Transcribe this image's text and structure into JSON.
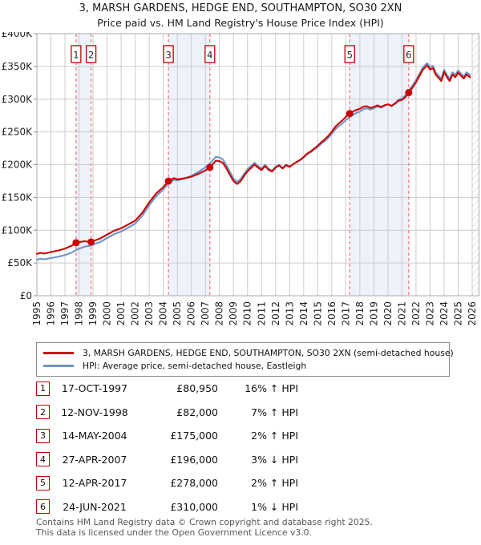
{
  "header": {
    "title_line1": "3, MARSH GARDENS, HEDGE END, SOUTHAMPTON, SO30 2XN",
    "title_line2": "Price paid vs. HM Land Registry's House Price Index (HPI)"
  },
  "colors": {
    "property": "#cc0000",
    "hpi": "#6d95c8",
    "marker_dashed": "#f08080",
    "band": "#edf2fb",
    "grid": "#cccccc",
    "plot_border": "#a8a8a8",
    "badge_border": "#c00000",
    "hatch": "#c4c4c4",
    "axis_text": "#222222"
  },
  "chart_data": {
    "type": "line",
    "title": "Price paid vs. HM Land Registry's House Price Index (HPI)",
    "values_unit": "GBP_thousands",
    "x_axis": {
      "years": [
        1995,
        1996,
        1997,
        1998,
        1999,
        2000,
        2001,
        2002,
        2003,
        2004,
        2005,
        2006,
        2007,
        2008,
        2009,
        2010,
        2011,
        2012,
        2013,
        2014,
        2015,
        2016,
        2017,
        2018,
        2019,
        2020,
        2021,
        2022,
        2023,
        2024,
        2025,
        2026
      ],
      "range": [
        1995,
        2026.5
      ]
    },
    "y_axis": {
      "min_k": 0,
      "max_k": 400,
      "tick_step_k": 50,
      "tick_labels": [
        "£0",
        "£50K",
        "£100K",
        "£150K",
        "£200K",
        "£250K",
        "£300K",
        "£350K",
        "£400K"
      ]
    },
    "x": [
      1995,
      1995.25,
      1995.5,
      1995.75,
      1996,
      1996.5,
      1997,
      1997.5,
      1997.79,
      1998.1,
      1998.4,
      1998.86,
      1999,
      1999.5,
      2000,
      2000.5,
      2001,
      2001.5,
      2002,
      2002.5,
      2003,
      2003.5,
      2004,
      2004.37,
      2004.75,
      2005,
      2005.5,
      2006,
      2006.5,
      2007,
      2007.32,
      2007.75,
      2008,
      2008.25,
      2008.5,
      2008.75,
      2009,
      2009.25,
      2009.5,
      2009.75,
      2010,
      2010.25,
      2010.5,
      2010.75,
      2011,
      2011.25,
      2011.5,
      2011.75,
      2012,
      2012.25,
      2012.5,
      2012.75,
      2013,
      2013.25,
      2013.5,
      2013.75,
      2014,
      2014.25,
      2014.5,
      2014.75,
      2015,
      2015.25,
      2015.5,
      2015.75,
      2016,
      2016.25,
      2016.5,
      2016.75,
      2017,
      2017.28,
      2017.5,
      2017.75,
      2018,
      2018.25,
      2018.5,
      2018.75,
      2019,
      2019.25,
      2019.5,
      2019.75,
      2020,
      2020.25,
      2020.5,
      2020.75,
      2021,
      2021.25,
      2021.48,
      2021.75,
      2022,
      2022.25,
      2022.5,
      2022.8,
      2023,
      2023.2,
      2023.4,
      2023.6,
      2023.8,
      2024,
      2024.2,
      2024.4,
      2024.6,
      2024.8,
      2025,
      2025.2,
      2025.4,
      2025.6,
      2025.85
    ],
    "series": [
      {
        "name": "3, MARSH GARDENS, HEDGE END, SOUTHAMPTON, SO30 2XN (semi-detached house)",
        "color": "#cc0000",
        "values_k": [
          63.8,
          65.5,
          64.4,
          65.5,
          66.7,
          69,
          71.9,
          76.6,
          81,
          82.2,
          83.2,
          82,
          83.4,
          87.3,
          93.3,
          99.2,
          103,
          108.8,
          114.6,
          126.5,
          142.5,
          156.2,
          165.8,
          175,
          179.4,
          177.6,
          179.2,
          181.6,
          186,
          191.2,
          196,
          206.1,
          205.4,
          202.7,
          194.2,
          184.7,
          175.1,
          170.5,
          174.6,
          182.7,
          189.8,
          195,
          200.2,
          195.5,
          191.8,
          197.9,
          192.3,
          189.5,
          195.7,
          198.9,
          194.2,
          199.4,
          196.7,
          200.9,
          204.2,
          207.5,
          211.7,
          217,
          220.3,
          224.6,
          228.9,
          234.3,
          238.6,
          243.9,
          250.3,
          257.7,
          263.1,
          267.5,
          273,
          278,
          281.1,
          283.6,
          285.2,
          288.7,
          289.2,
          286.7,
          288.2,
          290.7,
          288.2,
          290.7,
          292.2,
          289.7,
          293.1,
          297.6,
          299,
          303.4,
          310,
          317.8,
          325.7,
          335.6,
          345.5,
          351.5,
          345.5,
          347.5,
          337.6,
          332.6,
          327.7,
          341.6,
          333.6,
          327.7,
          337.6,
          333.6,
          340.6,
          335.6,
          331.7,
          337.6,
          333.6
        ]
      },
      {
        "name": "HPI: Average price, semi-detached house, Eastleigh",
        "color": "#6d95c8",
        "values_k": [
          55,
          56.5,
          55.5,
          56.5,
          57.5,
          59.5,
          62,
          66,
          69.8,
          72.5,
          75,
          76.6,
          78,
          82,
          88,
          94,
          98,
          104,
          110,
          122,
          138,
          152,
          162,
          171.6,
          177,
          176,
          179,
          183,
          189,
          196,
          202,
          212,
          211,
          208,
          199,
          189,
          179,
          174,
          178,
          186,
          193,
          198,
          203,
          198,
          194,
          200,
          194,
          191,
          197,
          200,
          195,
          200,
          197,
          201,
          204,
          207,
          211,
          216,
          219,
          223,
          227,
          232,
          236,
          241,
          247,
          254,
          259,
          263,
          268,
          272.5,
          276,
          279,
          281,
          285,
          286,
          284,
          286,
          289,
          287,
          290,
          292,
          290,
          294,
          299,
          301,
          306,
          313,
          321,
          329,
          339,
          349,
          355,
          349,
          351,
          341,
          336,
          331,
          345,
          337,
          331,
          341,
          337,
          344,
          339,
          335,
          341,
          337
        ]
      }
    ],
    "sales": [
      {
        "n": "1",
        "x": 1997.79,
        "price_k": 80.95,
        "date": "17-OCT-1997",
        "hpi_rel": "16% ↑ HPI"
      },
      {
        "n": "2",
        "x": 1998.86,
        "price_k": 82,
        "date": "12-NOV-1998",
        "hpi_rel": "7% ↑ HPI"
      },
      {
        "n": "3",
        "x": 2004.37,
        "price_k": 175,
        "date": "14-MAY-2004",
        "hpi_rel": "2% ↑ HPI"
      },
      {
        "n": "4",
        "x": 2007.32,
        "price_k": 196,
        "date": "27-APR-2007",
        "hpi_rel": "3% ↓ HPI"
      },
      {
        "n": "5",
        "x": 2017.28,
        "price_k": 278,
        "date": "12-APR-2017",
        "hpi_rel": "2% ↑ HPI"
      },
      {
        "n": "6",
        "x": 2021.48,
        "price_k": 310,
        "date": "24-JUN-2021",
        "hpi_rel": "1% ↓ HPI"
      }
    ],
    "ownership_bands": [
      [
        1997.79,
        1998.86
      ],
      [
        2004.37,
        2007.32
      ],
      [
        2017.28,
        2021.48
      ]
    ],
    "future_hatch_start": 2026,
    "grid": true,
    "legend_position": "below"
  },
  "table": {
    "rows": [
      {
        "n": "1",
        "date": "17-OCT-1997",
        "price": "£80,950",
        "hpi_rel": "16% ↑ HPI"
      },
      {
        "n": "2",
        "date": "12-NOV-1998",
        "price": "£82,000",
        "hpi_rel": "7% ↑ HPI"
      },
      {
        "n": "3",
        "date": "14-MAY-2004",
        "price": "£175,000",
        "hpi_rel": "2% ↑ HPI"
      },
      {
        "n": "4",
        "date": "27-APR-2007",
        "price": "£196,000",
        "hpi_rel": "3% ↓ HPI"
      },
      {
        "n": "5",
        "date": "12-APR-2017",
        "price": "£278,000",
        "hpi_rel": "2% ↑ HPI"
      },
      {
        "n": "6",
        "date": "24-JUN-2021",
        "price": "£310,000",
        "hpi_rel": "1% ↓ HPI"
      }
    ]
  },
  "footer": {
    "line1": "Contains HM Land Registry data © Crown copyright and database right 2025.",
    "line2": "This data is licensed under the Open Government Licence v3.0."
  }
}
